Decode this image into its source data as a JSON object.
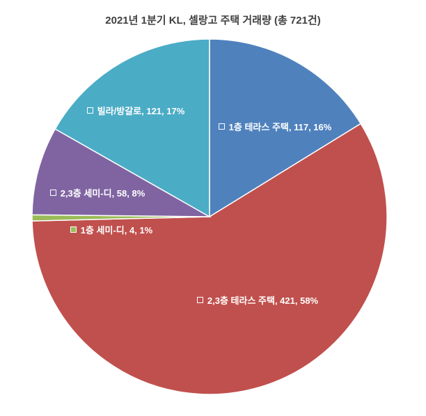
{
  "chart_data": {
    "type": "pie",
    "title": "2021년 1분기 KL, 셀랑고 주택 거래량 (총 721건)",
    "values": [
      117,
      421,
      4,
      58,
      121
    ],
    "value_labels": [
      "1층 테라스 주택, 117, 16%",
      "2,3층 테라스 주택, 421, 58%",
      "1층 세미-디, 4, 1%",
      "2,3층 세미-디, 58, 8%",
      "빌라/방갈로, 121, 17%"
    ],
    "colors": [
      "#4f81bd",
      "#c0504d",
      "#9bbb59",
      "#8064a2",
      "#4bacc6"
    ]
  }
}
